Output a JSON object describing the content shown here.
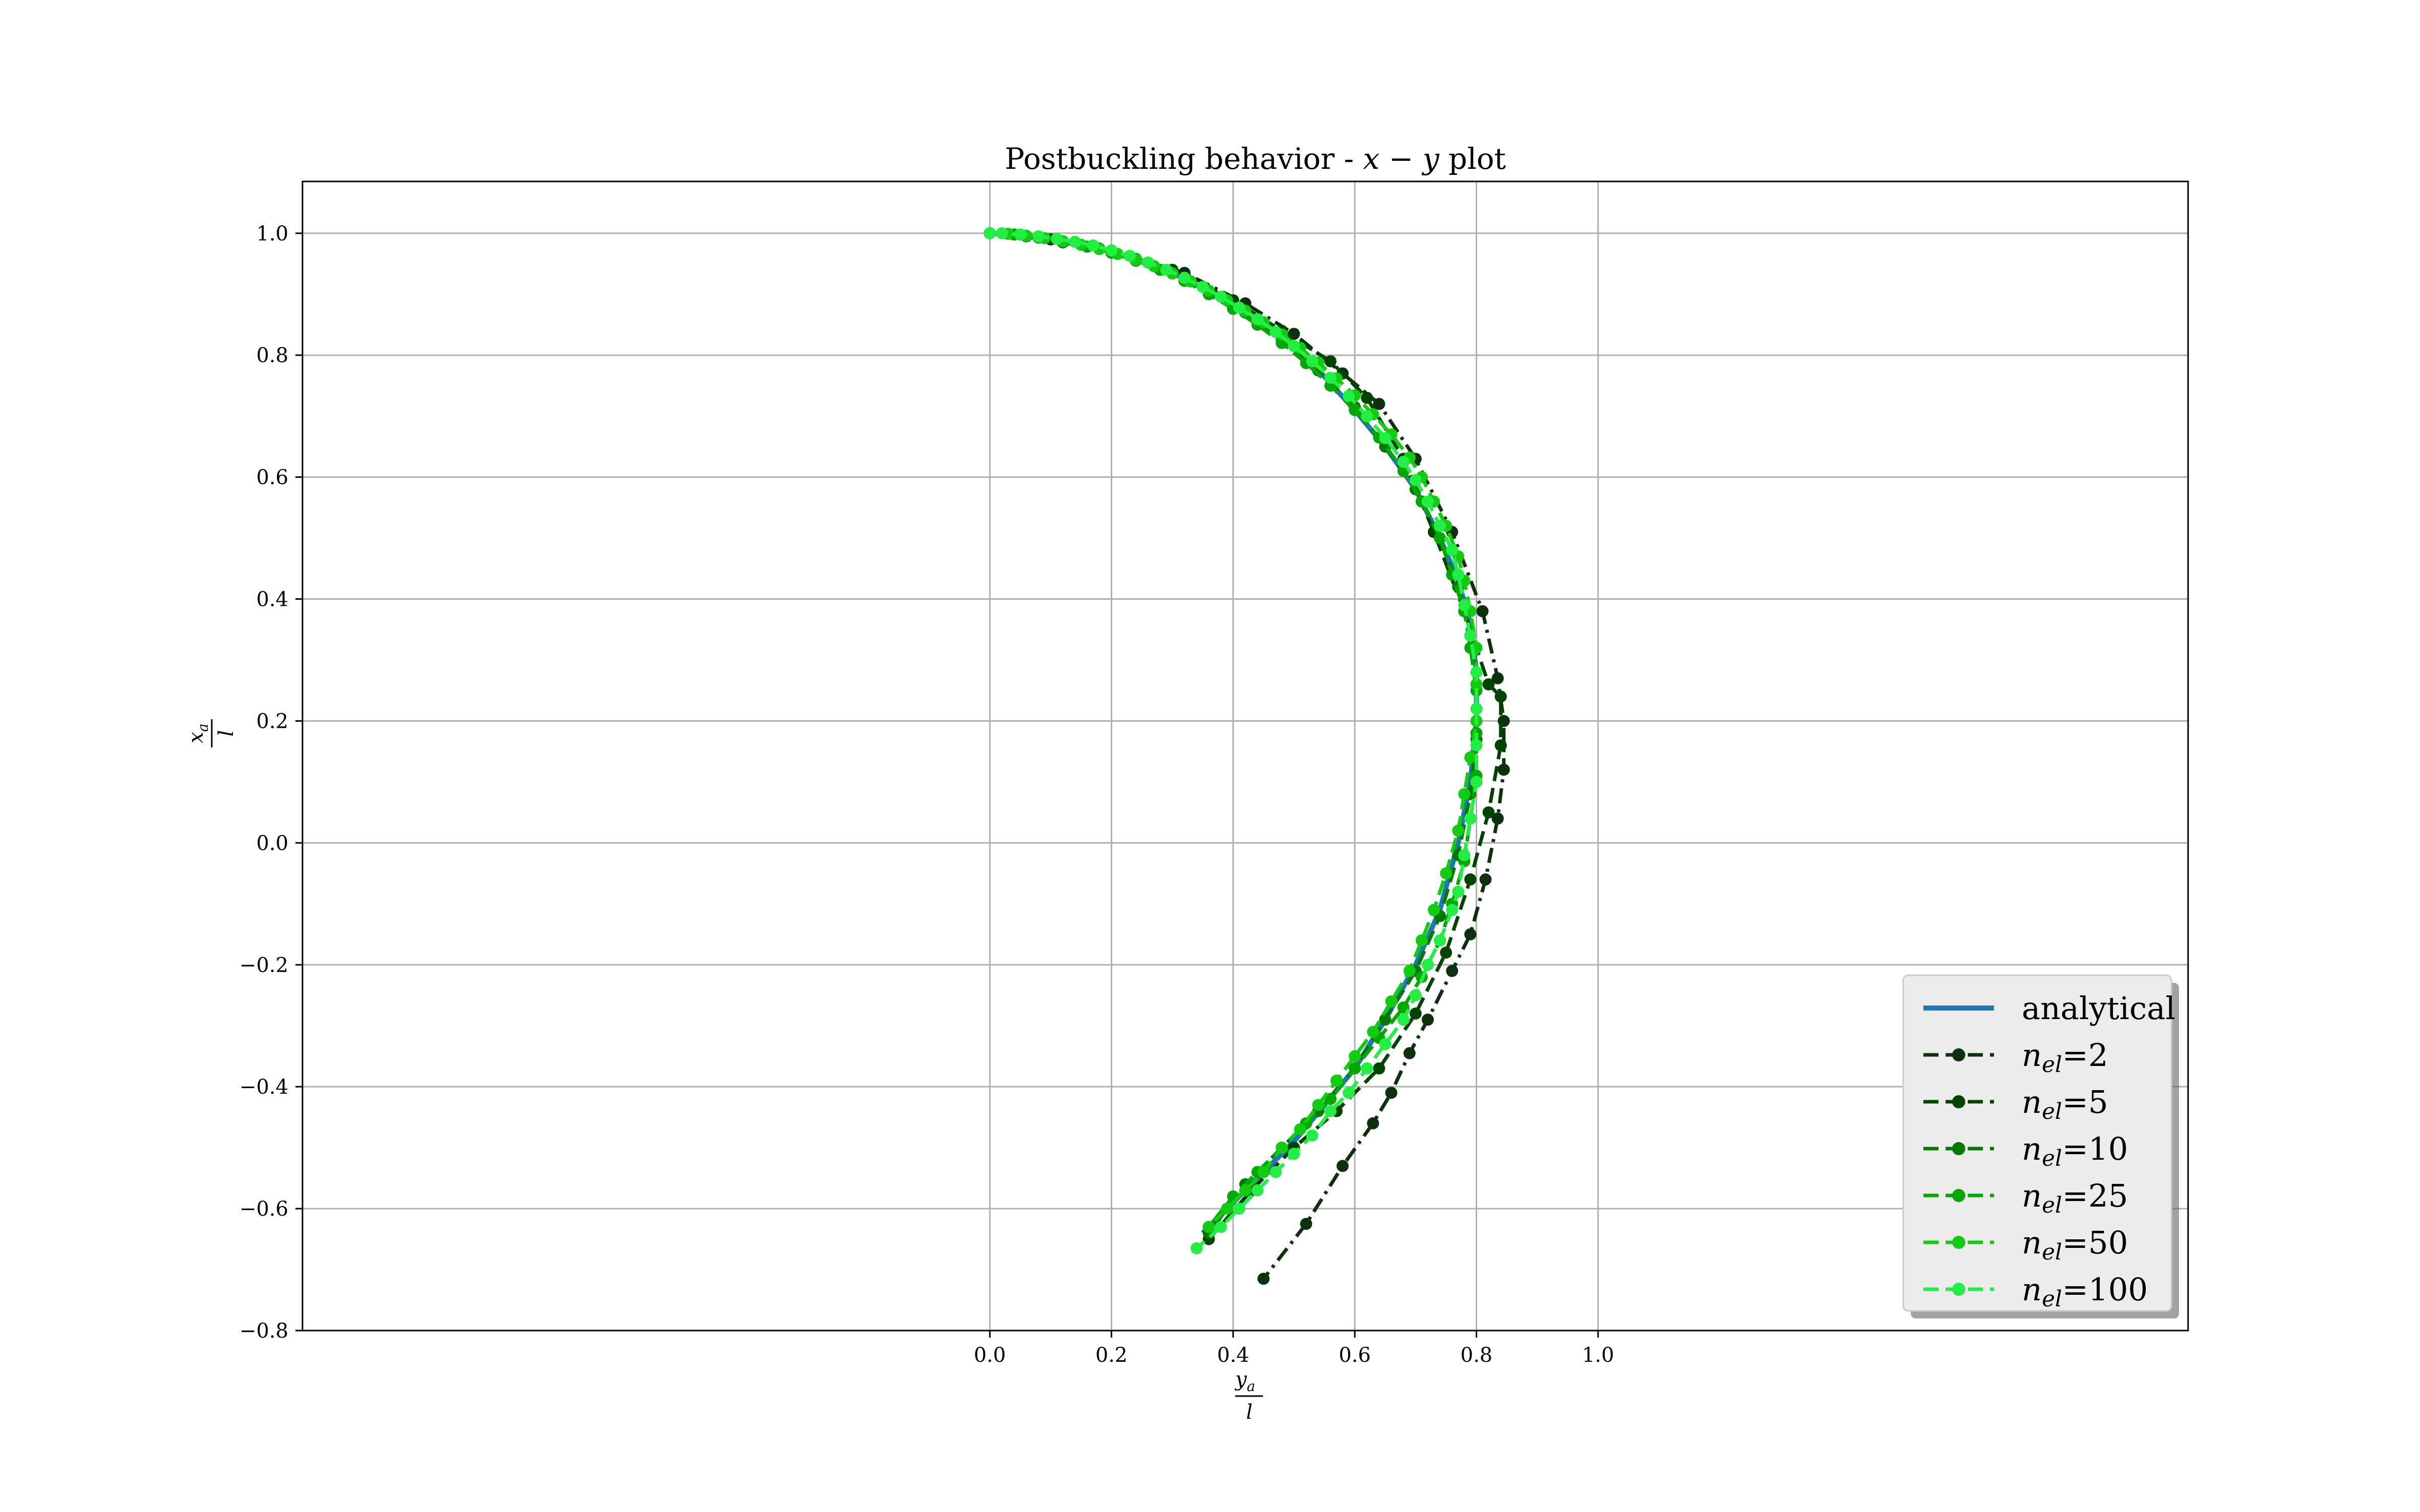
{
  "chart_data": {
    "type": "line",
    "title": "Postbuckling behavior - x − y plot",
    "title_parts": {
      "prefix": "Postbuckling behavior - ",
      "x": "x",
      "op": " − ",
      "y": "y",
      "suffix": " plot"
    },
    "xlabel": {
      "numerator": "y",
      "numerator_sub": "a",
      "denominator": "l"
    },
    "ylabel": {
      "numerator": "x",
      "numerator_sub": "a",
      "denominator": "l"
    },
    "xlim": [
      -1.13,
      1.97
    ],
    "ylim": [
      -0.8,
      1.085
    ],
    "xticks": [
      0.0,
      0.2,
      0.4,
      0.6,
      0.8,
      1.0
    ],
    "xtick_labels": [
      "0.0",
      "0.2",
      "0.4",
      "0.6",
      "0.8",
      "1.0"
    ],
    "yticks": [
      -0.8,
      -0.6,
      -0.4,
      -0.2,
      0.0,
      0.2,
      0.4,
      0.6,
      0.8,
      1.0
    ],
    "ytick_labels": [
      "−0.8",
      "−0.6",
      "−0.4",
      "−0.2",
      "0.0",
      "0.2",
      "0.4",
      "0.6",
      "0.8",
      "1.0"
    ],
    "grid": true,
    "legend_position": "lower-right",
    "colors": {
      "analytical": "#1f77b4",
      "n2": "#0d300d",
      "n5": "#004400",
      "n10": "#007a00",
      "n25": "#00a800",
      "n50": "#11cc11",
      "n100": "#22ee44"
    },
    "series": [
      {
        "name": "analytical",
        "label": "analytical",
        "style": "solid",
        "color_key": "analytical",
        "x": [
          0.0,
          0.05,
          0.1,
          0.15,
          0.2,
          0.25,
          0.3,
          0.35,
          0.4,
          0.45,
          0.5,
          0.55,
          0.6,
          0.65,
          0.7,
          0.74,
          0.77,
          0.79,
          0.8,
          0.8,
          0.79,
          0.77,
          0.74,
          0.7,
          0.65,
          0.6,
          0.55,
          0.5,
          0.45,
          0.4,
          0.35
        ],
        "y": [
          1.0,
          0.997,
          0.99,
          0.98,
          0.97,
          0.955,
          0.935,
          0.91,
          0.885,
          0.85,
          0.81,
          0.765,
          0.71,
          0.65,
          0.58,
          0.5,
          0.43,
          0.36,
          0.28,
          0.2,
          0.1,
          0.0,
          -0.11,
          -0.2,
          -0.29,
          -0.37,
          -0.43,
          -0.49,
          -0.54,
          -0.59,
          -0.64
        ]
      },
      {
        "name": "n_el=2",
        "label_prefix": "n",
        "label_sub": "el",
        "label_value": "=2",
        "style": "dashdot",
        "color_key": "n2",
        "x": [
          0.0,
          0.1,
          0.2,
          0.32,
          0.42,
          0.5,
          0.58,
          0.64,
          0.7,
          0.76,
          0.81,
          0.835,
          0.845,
          0.845,
          0.835,
          0.815,
          0.79,
          0.76,
          0.72,
          0.69,
          0.66,
          0.63,
          0.58,
          0.52,
          0.45
        ],
        "y": [
          1.0,
          0.99,
          0.97,
          0.935,
          0.885,
          0.835,
          0.77,
          0.72,
          0.63,
          0.51,
          0.38,
          0.27,
          0.2,
          0.12,
          0.04,
          -0.06,
          -0.15,
          -0.21,
          -0.29,
          -0.345,
          -0.41,
          -0.46,
          -0.53,
          -0.625,
          -0.715
        ]
      },
      {
        "name": "n_el=5",
        "label_prefix": "n",
        "label_sub": "el",
        "label_value": "=5",
        "style": "dashed",
        "color_key": "n5",
        "x": [
          0.0,
          0.1,
          0.2,
          0.3,
          0.4,
          0.48,
          0.56,
          0.62,
          0.68,
          0.73,
          0.78,
          0.82,
          0.84,
          0.84,
          0.82,
          0.79,
          0.75,
          0.7,
          0.64,
          0.57,
          0.5,
          0.43,
          0.36
        ],
        "y": [
          1.0,
          0.99,
          0.97,
          0.94,
          0.89,
          0.84,
          0.79,
          0.73,
          0.63,
          0.51,
          0.38,
          0.26,
          0.24,
          0.16,
          0.05,
          -0.06,
          -0.18,
          -0.28,
          -0.37,
          -0.44,
          -0.5,
          -0.57,
          -0.65
        ]
      },
      {
        "name": "n_el=10",
        "label_prefix": "n",
        "label_sub": "el",
        "label_value": "=10",
        "style": "dashed",
        "color_key": "n10",
        "x": [
          0.0,
          0.06,
          0.12,
          0.18,
          0.24,
          0.3,
          0.36,
          0.42,
          0.48,
          0.54,
          0.6,
          0.65,
          0.7,
          0.74,
          0.77,
          0.79,
          0.8,
          0.8,
          0.79,
          0.77,
          0.74,
          0.7,
          0.65,
          0.6,
          0.54,
          0.48,
          0.42,
          0.36
        ],
        "y": [
          1.0,
          0.995,
          0.985,
          0.975,
          0.958,
          0.935,
          0.905,
          0.87,
          0.825,
          0.775,
          0.715,
          0.65,
          0.58,
          0.5,
          0.42,
          0.34,
          0.26,
          0.17,
          0.08,
          -0.02,
          -0.12,
          -0.21,
          -0.29,
          -0.37,
          -0.44,
          -0.5,
          -0.56,
          -0.64
        ]
      },
      {
        "name": "n_el=25",
        "label_prefix": "n",
        "label_sub": "el",
        "label_value": "=25",
        "style": "dashed",
        "color_key": "n25",
        "x": [
          0.0,
          0.04,
          0.08,
          0.12,
          0.16,
          0.2,
          0.24,
          0.28,
          0.32,
          0.36,
          0.4,
          0.44,
          0.48,
          0.52,
          0.56,
          0.6,
          0.64,
          0.68,
          0.71,
          0.74,
          0.76,
          0.78,
          0.79,
          0.8,
          0.8,
          0.8,
          0.79,
          0.78,
          0.76,
          0.74,
          0.71,
          0.68,
          0.64,
          0.6,
          0.56,
          0.52,
          0.48,
          0.44,
          0.4,
          0.36
        ],
        "y": [
          1.0,
          0.998,
          0.993,
          0.987,
          0.978,
          0.968,
          0.955,
          0.94,
          0.922,
          0.9,
          0.876,
          0.85,
          0.82,
          0.787,
          0.75,
          0.71,
          0.665,
          0.61,
          0.56,
          0.5,
          0.44,
          0.38,
          0.32,
          0.25,
          0.18,
          0.11,
          0.04,
          -0.03,
          -0.1,
          -0.16,
          -0.22,
          -0.27,
          -0.32,
          -0.37,
          -0.42,
          -0.46,
          -0.5,
          -0.54,
          -0.58,
          -0.63
        ]
      },
      {
        "name": "n_el=50",
        "label_prefix": "n",
        "label_sub": "el",
        "label_value": "=50",
        "style": "dashed",
        "color_key": "n50",
        "x": [
          0.0,
          0.03,
          0.06,
          0.09,
          0.12,
          0.15,
          0.18,
          0.21,
          0.24,
          0.27,
          0.3,
          0.33,
          0.36,
          0.39,
          0.42,
          0.45,
          0.48,
          0.51,
          0.54,
          0.57,
          0.6,
          0.63,
          0.66,
          0.69,
          0.71,
          0.73,
          0.75,
          0.77,
          0.78,
          0.79,
          0.8,
          0.8,
          0.8,
          0.79,
          0.78,
          0.77,
          0.75,
          0.73,
          0.71,
          0.69,
          0.66,
          0.63,
          0.6,
          0.57,
          0.54,
          0.51,
          0.48,
          0.45,
          0.42,
          0.39,
          0.36
        ],
        "y": [
          1.0,
          0.999,
          0.996,
          0.992,
          0.987,
          0.981,
          0.974,
          0.966,
          0.957,
          0.946,
          0.934,
          0.921,
          0.906,
          0.89,
          0.873,
          0.854,
          0.834,
          0.812,
          0.788,
          0.762,
          0.734,
          0.703,
          0.67,
          0.632,
          0.6,
          0.56,
          0.52,
          0.47,
          0.43,
          0.38,
          0.32,
          0.26,
          0.2,
          0.14,
          0.08,
          0.02,
          -0.05,
          -0.11,
          -0.16,
          -0.21,
          -0.26,
          -0.31,
          -0.35,
          -0.39,
          -0.43,
          -0.47,
          -0.5,
          -0.54,
          -0.57,
          -0.6,
          -0.63
        ]
      },
      {
        "name": "n_el=100",
        "label_prefix": "n",
        "label_sub": "el",
        "label_value": "=100",
        "style": "dashed",
        "color_key": "n100",
        "x": [
          0.0,
          0.02,
          0.05,
          0.08,
          0.11,
          0.14,
          0.17,
          0.2,
          0.23,
          0.26,
          0.29,
          0.32,
          0.35,
          0.38,
          0.41,
          0.44,
          0.47,
          0.5,
          0.53,
          0.56,
          0.59,
          0.62,
          0.65,
          0.68,
          0.7,
          0.72,
          0.74,
          0.76,
          0.77,
          0.78,
          0.79,
          0.8,
          0.8,
          0.8,
          0.8,
          0.79,
          0.78,
          0.77,
          0.76,
          0.74,
          0.72,
          0.7,
          0.68,
          0.65,
          0.62,
          0.59,
          0.56,
          0.53,
          0.5,
          0.47,
          0.44,
          0.41,
          0.38,
          0.34
        ],
        "y": [
          1.0,
          1.0,
          0.998,
          0.995,
          0.991,
          0.986,
          0.98,
          0.972,
          0.963,
          0.952,
          0.94,
          0.927,
          0.912,
          0.896,
          0.878,
          0.859,
          0.838,
          0.815,
          0.79,
          0.763,
          0.733,
          0.7,
          0.664,
          0.625,
          0.595,
          0.56,
          0.52,
          0.48,
          0.44,
          0.39,
          0.34,
          0.28,
          0.22,
          0.16,
          0.1,
          0.04,
          -0.02,
          -0.08,
          -0.11,
          -0.16,
          -0.2,
          -0.25,
          -0.29,
          -0.33,
          -0.37,
          -0.41,
          -0.44,
          -0.48,
          -0.51,
          -0.54,
          -0.57,
          -0.6,
          -0.63,
          -0.665
        ]
      }
    ]
  }
}
